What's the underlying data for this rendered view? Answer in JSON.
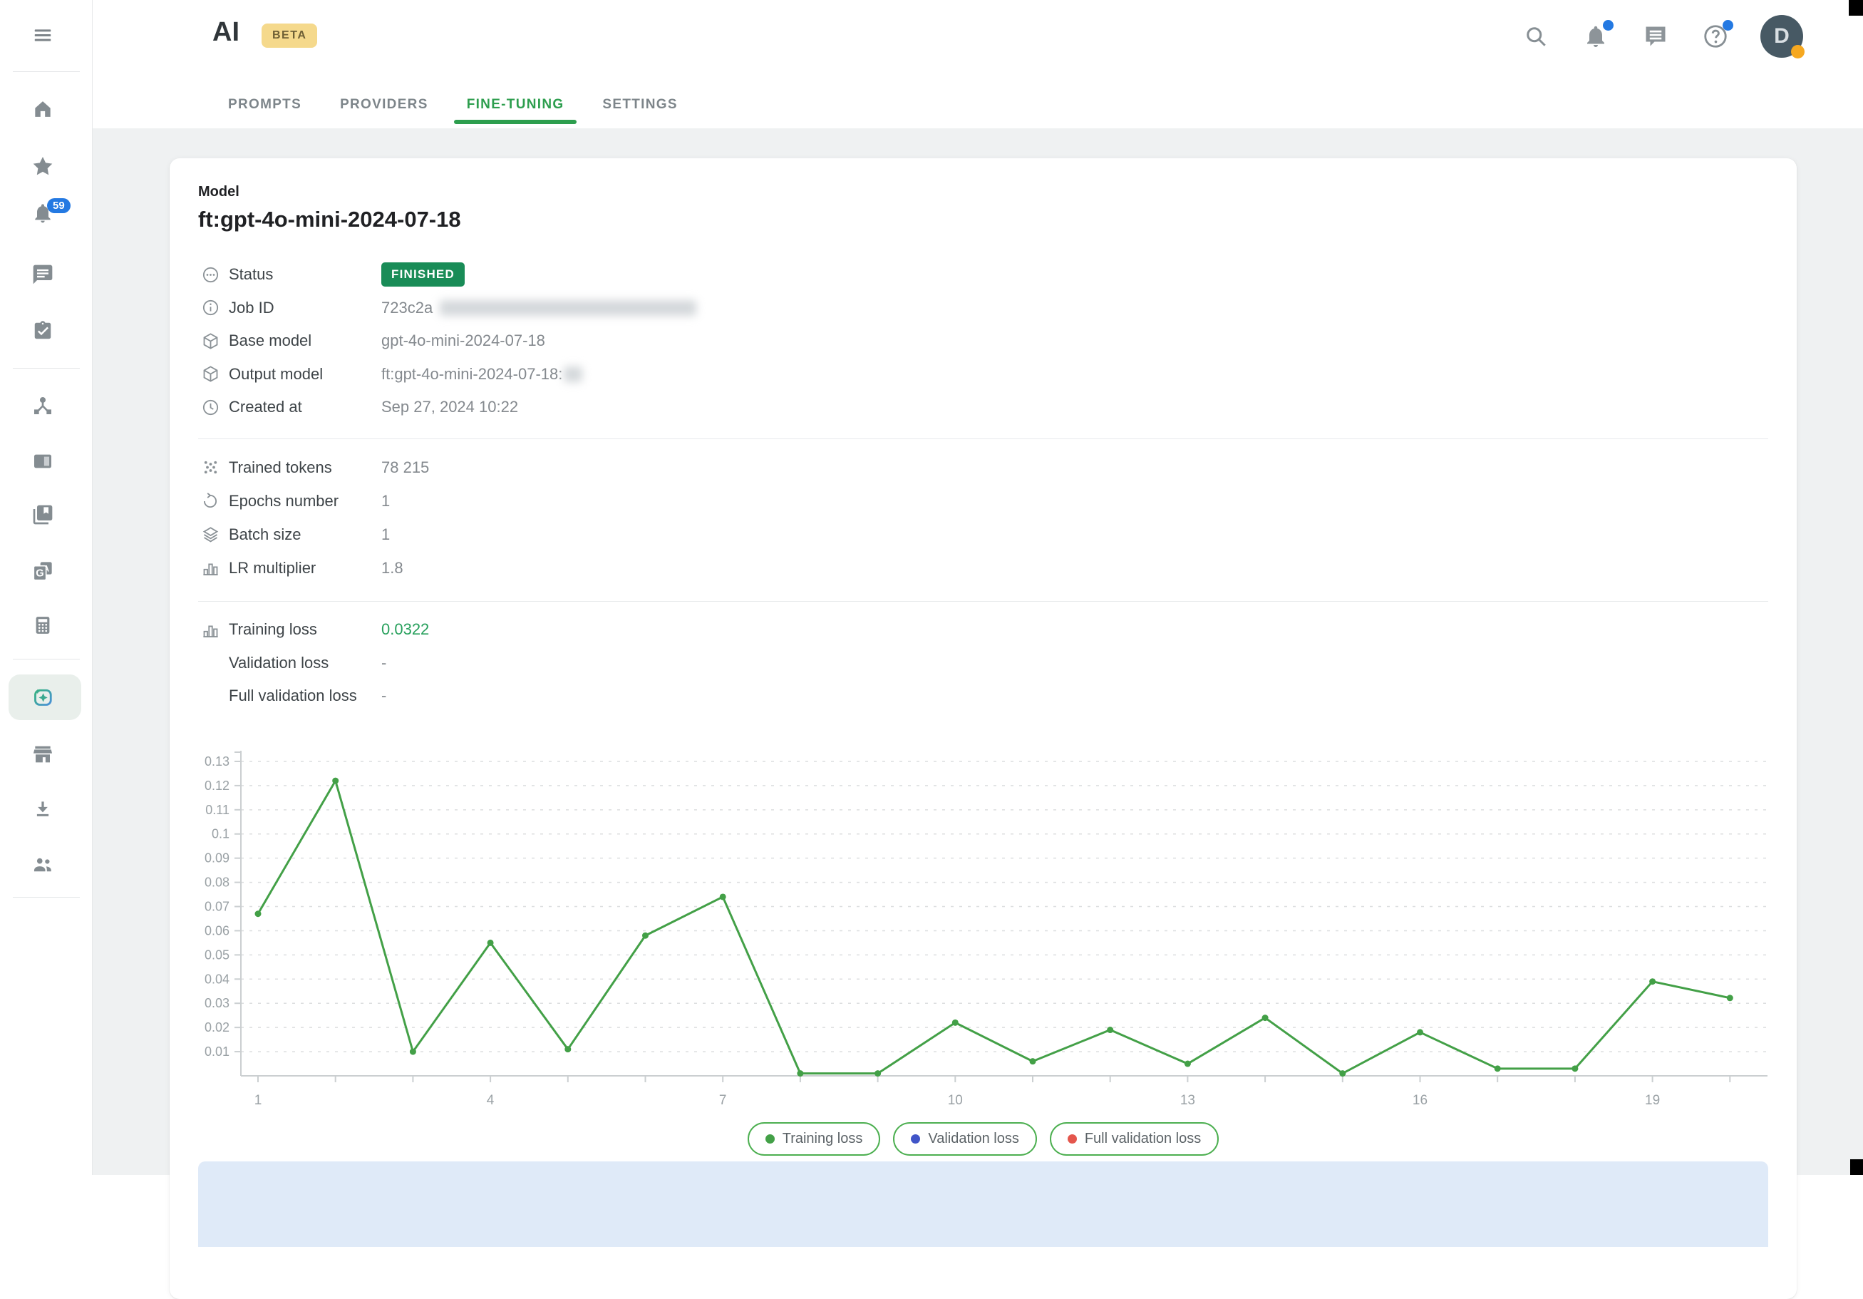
{
  "app": {
    "logo_text": "AI",
    "beta_label": "BETA"
  },
  "header": {
    "tabs": [
      {
        "label": "PROMPTS"
      },
      {
        "label": "PROVIDERS"
      },
      {
        "label": "FINE-TUNING"
      },
      {
        "label": "SETTINGS"
      }
    ],
    "active_tab": "FINE-TUNING",
    "avatar_initial": "D",
    "icon_names": [
      "search-icon",
      "notifications-icon",
      "chat-icon",
      "help-icon",
      "avatar"
    ]
  },
  "sidebar": {
    "notification_badge": "59",
    "icon_names": [
      "menu-icon",
      "home-icon",
      "star-icon",
      "notifications-icon",
      "chat-icon",
      "tasks-icon",
      "hub-icon",
      "panel-icon",
      "library-icon",
      "translate-icon",
      "calculator-icon",
      "ai-finetune-icon",
      "store-icon",
      "download-icon",
      "people-icon"
    ]
  },
  "model": {
    "section_label": "Model",
    "name": "ft:gpt-4o-mini-2024-07-18",
    "status_label": "Status",
    "status_value": "FINISHED",
    "job_id_label": "Job ID",
    "job_id_value": "723c2a",
    "base_model_label": "Base model",
    "base_model_value": "gpt-4o-mini-2024-07-18",
    "output_model_label": "Output model",
    "output_model_value": "ft:gpt-4o-mini-2024-07-18:",
    "created_at_label": "Created at",
    "created_at_value": "Sep 27, 2024 10:22"
  },
  "params": {
    "trained_tokens_label": "Trained tokens",
    "trained_tokens_value": "78 215",
    "epochs_label": "Epochs number",
    "epochs_value": "1",
    "batch_label": "Batch size",
    "batch_value": "1",
    "lr_label": "LR multiplier",
    "lr_value": "1.8"
  },
  "losses": {
    "training_label": "Training loss",
    "training_value": "0.0322",
    "validation_label": "Validation loss",
    "validation_value": "-",
    "full_validation_label": "Full validation loss",
    "full_validation_value": "-"
  },
  "chart_data": {
    "type": "line",
    "x": [
      1,
      2,
      3,
      4,
      5,
      6,
      7,
      8,
      9,
      10,
      11,
      12,
      13,
      14,
      15,
      16,
      17,
      18,
      19,
      20
    ],
    "series": [
      {
        "name": "Training loss",
        "color": "#43a047",
        "values": [
          0.067,
          0.122,
          0.01,
          0.055,
          0.011,
          0.058,
          0.074,
          0.001,
          0.001,
          0.022,
          0.006,
          0.019,
          0.005,
          0.024,
          0.001,
          0.018,
          0.003,
          0.003,
          0.039,
          0.0322
        ]
      }
    ],
    "legend": [
      {
        "label": "Training loss",
        "color": "#43a047"
      },
      {
        "label": "Validation loss",
        "color": "#4155c8"
      },
      {
        "label": "Full validation loss",
        "color": "#e4564c"
      }
    ],
    "title": "",
    "xlabel": "",
    "ylabel": "",
    "ylim": [
      0,
      0.135
    ],
    "yticks": [
      0.01,
      0.02,
      0.03,
      0.04,
      0.05,
      0.06,
      0.07,
      0.08,
      0.09,
      0.1,
      0.11,
      0.12,
      0.13
    ],
    "xtick_labels": [
      1,
      4,
      7,
      10,
      13,
      16,
      19
    ],
    "grid": "horizontal-dashed",
    "legend_position": "bottom"
  },
  "colors": {
    "accent_green": "#2d9e4e",
    "chart_line": "#4caf50",
    "status_badge": "#198c57",
    "notification_blue": "#2479e2",
    "avatar_bg": "#475964",
    "avatar_presence": "#f6a820",
    "beta_bg": "#f5d98c",
    "banner_blue": "#dfeaf8",
    "page_bg": "#eff1f2"
  }
}
